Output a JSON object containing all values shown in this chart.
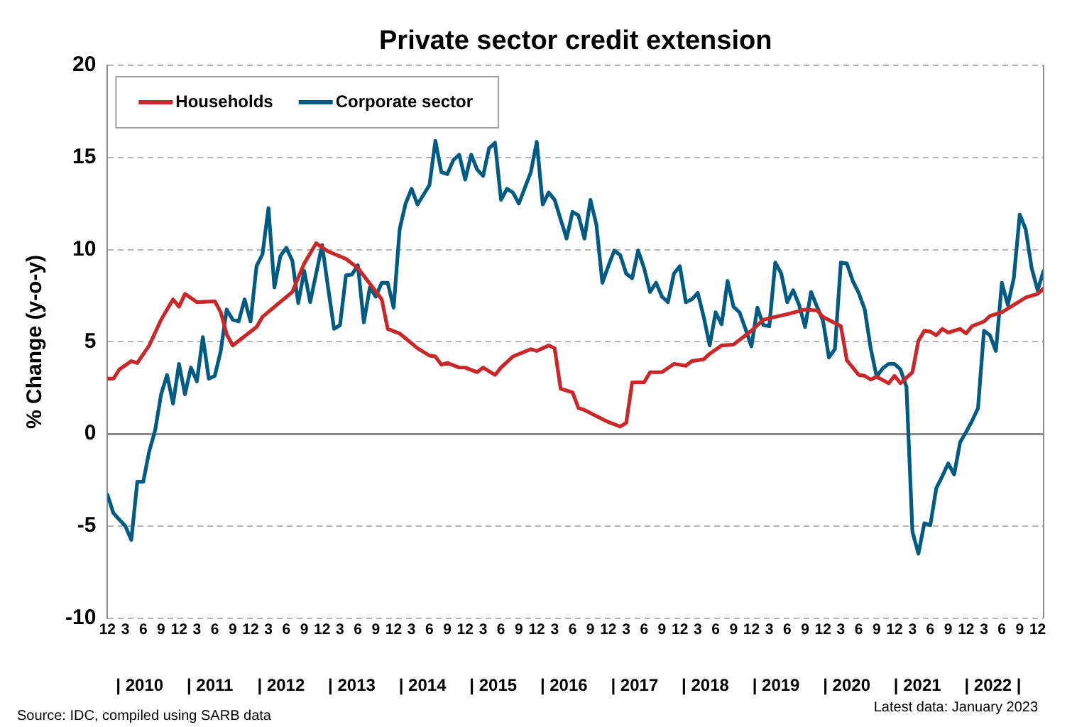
{
  "chart_data": {
    "type": "line",
    "title": "Private sector credit extension",
    "ylabel": "% Change (y-o-y)",
    "xlim": [
      "2009-12",
      "2023-01"
    ],
    "xticks": [
      {
        "value": "2009-12",
        "label": "12"
      },
      {
        "value": "2010-03",
        "label": "3"
      },
      {
        "value": "2010-06",
        "label": "6"
      },
      {
        "value": "2010-09",
        "label": "9"
      },
      {
        "value": "2010-12",
        "label": "12"
      },
      {
        "value": "2011-03",
        "label": "3"
      },
      {
        "value": "2011-06",
        "label": "6"
      },
      {
        "value": "2011-09",
        "label": "9"
      },
      {
        "value": "2011-12",
        "label": "12"
      },
      {
        "value": "2012-03",
        "label": "3"
      },
      {
        "value": "2012-06",
        "label": "6"
      },
      {
        "value": "2012-09",
        "label": "9"
      },
      {
        "value": "2012-12",
        "label": "12"
      },
      {
        "value": "2013-03",
        "label": "3"
      },
      {
        "value": "2013-06",
        "label": "6"
      },
      {
        "value": "2013-09",
        "label": "9"
      },
      {
        "value": "2013-12",
        "label": "12"
      },
      {
        "value": "2014-03",
        "label": "3"
      },
      {
        "value": "2014-06",
        "label": "6"
      },
      {
        "value": "2014-09",
        "label": "9"
      },
      {
        "value": "2014-12",
        "label": "12"
      },
      {
        "value": "2015-03",
        "label": "3"
      },
      {
        "value": "2015-06",
        "label": "6"
      },
      {
        "value": "2015-09",
        "label": "9"
      },
      {
        "value": "2015-12",
        "label": "12"
      },
      {
        "value": "2016-03",
        "label": "3"
      },
      {
        "value": "2016-06",
        "label": "6"
      },
      {
        "value": "2016-09",
        "label": "9"
      },
      {
        "value": "2016-12",
        "label": "12"
      },
      {
        "value": "2017-03",
        "label": "3"
      },
      {
        "value": "2017-06",
        "label": "6"
      },
      {
        "value": "2017-09",
        "label": "9"
      },
      {
        "value": "2017-12",
        "label": "12"
      },
      {
        "value": "2018-03",
        "label": "3"
      },
      {
        "value": "2018-06",
        "label": "6"
      },
      {
        "value": "2018-09",
        "label": "9"
      },
      {
        "value": "2018-12",
        "label": "12"
      },
      {
        "value": "2019-03",
        "label": "3"
      },
      {
        "value": "2019-06",
        "label": "6"
      },
      {
        "value": "2019-09",
        "label": "9"
      },
      {
        "value": "2019-12",
        "label": "12"
      },
      {
        "value": "2020-03",
        "label": "3"
      },
      {
        "value": "2020-06",
        "label": "6"
      },
      {
        "value": "2020-09",
        "label": "9"
      },
      {
        "value": "2020-12",
        "label": "12"
      },
      {
        "value": "2021-03",
        "label": "3"
      },
      {
        "value": "2021-06",
        "label": "6"
      },
      {
        "value": "2021-09",
        "label": "9"
      },
      {
        "value": "2021-12",
        "label": "12"
      },
      {
        "value": "2022-03",
        "label": "3"
      },
      {
        "value": "2022-06",
        "label": "6"
      },
      {
        "value": "2022-09",
        "label": "9"
      },
      {
        "value": "2022-12",
        "label": "12"
      }
    ],
    "ylim": [
      -10,
      20
    ],
    "yticks": [
      -10,
      -5,
      0,
      5,
      10,
      15,
      20
    ],
    "grid": "y",
    "legend": "top left",
    "marker": "none",
    "line_style": "solid",
    "annotations": [
      "| 2010",
      "| 2011",
      "| 2012",
      "| 2013",
      "| 2014",
      "| 2015",
      "| 2016",
      "| 2017",
      "| 2018",
      "| 2019",
      "| 2020",
      "| 2021",
      "| 2022 |",
      "Source: IDC, compiled using SARB data",
      "Latest data: January 2023"
    ],
    "series": [
      {
        "name": "Households",
        "color": "#c8282a",
        "x": [
          "2009-12",
          "2010-01",
          "2010-02",
          "2010-04",
          "2010-05",
          "2010-07",
          "2010-09",
          "2010-11",
          "2010-12",
          "2011-01",
          "2011-03",
          "2011-06",
          "2011-07",
          "2011-08",
          "2011-09",
          "2011-11",
          "2012-01",
          "2012-02",
          "2012-07",
          "2012-09",
          "2012-11",
          "2013-01",
          "2013-04",
          "2013-06",
          "2013-10",
          "2013-11",
          "2014-01",
          "2014-04",
          "2014-06",
          "2014-07",
          "2014-08",
          "2014-09",
          "2014-11",
          "2014-12",
          "2015-02",
          "2015-03",
          "2015-05",
          "2015-06",
          "2015-08",
          "2015-11",
          "2015-12",
          "2016-02",
          "2016-03",
          "2016-04",
          "2016-06",
          "2016-07",
          "2016-08",
          "2016-11",
          "2016-12",
          "2017-02",
          "2017-03",
          "2017-04",
          "2017-06",
          "2017-07",
          "2017-09",
          "2017-11",
          "2018-01",
          "2018-02",
          "2018-04",
          "2018-05",
          "2018-07",
          "2018-09",
          "2018-12",
          "2019-02",
          "2019-06",
          "2019-09",
          "2019-11",
          "2019-12",
          "2020-03",
          "2020-04",
          "2020-06",
          "2020-07",
          "2020-08",
          "2020-09",
          "2020-11",
          "2020-12",
          "2021-01",
          "2021-03",
          "2021-04",
          "2021-05",
          "2021-06",
          "2021-07",
          "2021-08",
          "2021-09",
          "2021-11",
          "2021-12",
          "2022-01",
          "2022-03",
          "2022-04",
          "2022-06",
          "2022-08",
          "2022-10",
          "2022-12",
          "2023-01"
        ],
        "values": [
          3.0,
          3.0,
          3.5,
          3.95,
          3.85,
          4.8,
          6.2,
          7.3,
          6.9,
          7.6,
          7.15,
          7.2,
          6.6,
          5.4,
          4.8,
          5.3,
          5.8,
          6.35,
          7.7,
          9.25,
          10.35,
          9.9,
          9.5,
          9.0,
          7.3,
          5.7,
          5.45,
          4.65,
          4.25,
          4.2,
          3.75,
          3.85,
          3.6,
          3.6,
          3.35,
          3.6,
          3.2,
          3.6,
          4.2,
          4.6,
          4.5,
          4.8,
          4.65,
          2.45,
          2.25,
          1.4,
          1.3,
          0.8,
          0.65,
          0.4,
          0.6,
          2.8,
          2.8,
          3.35,
          3.35,
          3.8,
          3.7,
          3.95,
          4.05,
          4.35,
          4.8,
          4.85,
          5.6,
          6.2,
          6.5,
          6.75,
          6.7,
          6.35,
          5.85,
          4.0,
          3.2,
          3.15,
          2.95,
          3.1,
          2.75,
          3.15,
          2.75,
          3.35,
          5.05,
          5.6,
          5.55,
          5.35,
          5.7,
          5.5,
          5.7,
          5.45,
          5.85,
          6.1,
          6.4,
          6.6,
          7.0,
          7.4,
          7.6,
          7.9
        ]
      },
      {
        "name": "Corporate sector",
        "color": "#005a82",
        "x": [
          "2009-12",
          "2010-01",
          "2010-03",
          "2010-04",
          "2010-05",
          "2010-06",
          "2010-07",
          "2010-08",
          "2010-09",
          "2010-10",
          "2010-11",
          "2010-12",
          "2011-01",
          "2011-02",
          "2011-03",
          "2011-04",
          "2011-05",
          "2011-06",
          "2011-07",
          "2011-08",
          "2011-09",
          "2011-10",
          "2011-11",
          "2011-12",
          "2012-01",
          "2012-02",
          "2012-03",
          "2012-04",
          "2012-05",
          "2012-06",
          "2012-07",
          "2012-08",
          "2012-09",
          "2012-10",
          "2012-12",
          "2013-01",
          "2013-02",
          "2013-03",
          "2013-04",
          "2013-05",
          "2013-06",
          "2013-07",
          "2013-08",
          "2013-09",
          "2013-10",
          "2013-11",
          "2013-12",
          "2014-01",
          "2014-02",
          "2014-03",
          "2014-04",
          "2014-06",
          "2014-07",
          "2014-08",
          "2014-09",
          "2014-10",
          "2014-11",
          "2014-12",
          "2015-01",
          "2015-02",
          "2015-03",
          "2015-04",
          "2015-05",
          "2015-06",
          "2015-07",
          "2015-08",
          "2015-09",
          "2015-11",
          "2015-12",
          "2016-01",
          "2016-02",
          "2016-03",
          "2016-05",
          "2016-06",
          "2016-07",
          "2016-08",
          "2016-09",
          "2016-10",
          "2016-11",
          "2016-12",
          "2017-01",
          "2017-02",
          "2017-03",
          "2017-04",
          "2017-05",
          "2017-06",
          "2017-07",
          "2017-08",
          "2017-09",
          "2017-10",
          "2017-11",
          "2017-12",
          "2018-01",
          "2018-02",
          "2018-03",
          "2018-04",
          "2018-05",
          "2018-06",
          "2018-07",
          "2018-08",
          "2018-09",
          "2018-10",
          "2018-11",
          "2018-12",
          "2019-01",
          "2019-02",
          "2019-03",
          "2019-04",
          "2019-05",
          "2019-06",
          "2019-07",
          "2019-08",
          "2019-09",
          "2019-10",
          "2019-11",
          "2019-12",
          "2020-01",
          "2020-02",
          "2020-03",
          "2020-04",
          "2020-05",
          "2020-06",
          "2020-07",
          "2020-08",
          "2020-09",
          "2020-10",
          "2020-11",
          "2020-12",
          "2021-01",
          "2021-02",
          "2021-03",
          "2021-04",
          "2021-05",
          "2021-06",
          "2021-07",
          "2021-08",
          "2021-09",
          "2021-10",
          "2021-11",
          "2021-12",
          "2022-01",
          "2022-02",
          "2022-03",
          "2022-04",
          "2022-05",
          "2022-06",
          "2022-07",
          "2022-08",
          "2022-09",
          "2022-10",
          "2022-11",
          "2022-12",
          "2023-01"
        ],
        "values": [
          -3.3,
          -4.3,
          -5.0,
          -5.75,
          -2.6,
          -2.6,
          -0.95,
          0.2,
          2.15,
          3.2,
          1.65,
          3.8,
          2.15,
          3.6,
          2.85,
          5.25,
          3.0,
          3.15,
          4.5,
          6.75,
          6.2,
          6.1,
          7.3,
          6.1,
          9.1,
          9.75,
          12.25,
          7.95,
          9.65,
          10.1,
          9.4,
          7.1,
          8.85,
          7.15,
          10.25,
          7.95,
          5.7,
          5.9,
          8.6,
          8.65,
          9.15,
          6.05,
          7.95,
          7.45,
          8.2,
          8.2,
          6.85,
          11.1,
          12.5,
          13.3,
          12.45,
          13.5,
          15.9,
          14.2,
          14.1,
          14.85,
          15.15,
          13.8,
          15.15,
          14.35,
          14.0,
          15.5,
          15.8,
          12.7,
          13.3,
          13.1,
          12.5,
          14.2,
          15.85,
          12.45,
          13.1,
          12.7,
          10.6,
          12.05,
          11.85,
          10.6,
          12.7,
          11.35,
          8.2,
          9.1,
          9.95,
          9.7,
          8.7,
          8.45,
          9.95,
          9.0,
          7.7,
          8.2,
          7.45,
          7.15,
          8.7,
          9.1,
          7.15,
          7.3,
          7.65,
          6.35,
          4.8,
          6.6,
          5.95,
          8.3,
          6.9,
          6.6,
          5.7,
          4.75,
          6.85,
          5.9,
          5.85,
          9.3,
          8.7,
          7.15,
          7.8,
          7.0,
          5.8,
          7.7,
          6.9,
          6.15,
          4.15,
          4.6,
          9.3,
          9.25,
          8.3,
          7.65,
          6.75,
          4.65,
          3.1,
          3.55,
          3.8,
          3.8,
          3.5,
          2.55,
          -5.3,
          -6.5,
          -4.85,
          -4.95,
          -2.95,
          -2.3,
          -1.6,
          -2.2,
          -0.45,
          0.1,
          0.7,
          1.4,
          5.6,
          5.35,
          4.5,
          8.2,
          7.0,
          8.45,
          11.9,
          11.1,
          9.0,
          7.8,
          8.85
        ]
      }
    ]
  }
}
